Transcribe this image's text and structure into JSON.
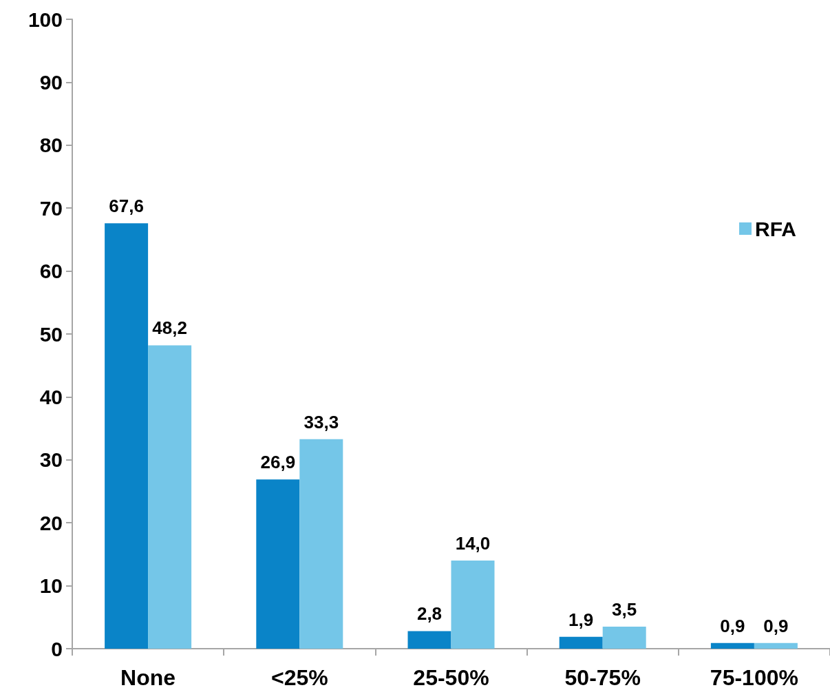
{
  "chart_data": {
    "type": "bar",
    "categories": [
      "None",
      "<25%",
      "25-50%",
      "50-75%",
      "75-100%"
    ],
    "series": [
      {
        "color": "#0a84c8",
        "values": [
          67.6,
          26.9,
          2.8,
          1.9,
          0.9
        ],
        "value_labels": [
          "67,6",
          "26,9",
          "2,8",
          "1,9",
          "0,9"
        ]
      },
      {
        "name": "RFA",
        "color": "#74c6e8",
        "values": [
          48.2,
          33.3,
          14.0,
          3.5,
          0.9
        ],
        "value_labels": [
          "48,2",
          "33,3",
          "14,0",
          "3,5",
          "0,9"
        ]
      }
    ],
    "ylim": [
      0,
      100
    ],
    "yticks": [
      0,
      10,
      20,
      30,
      40,
      50,
      60,
      70,
      80,
      90,
      100
    ],
    "grid": false,
    "legend": "right"
  }
}
